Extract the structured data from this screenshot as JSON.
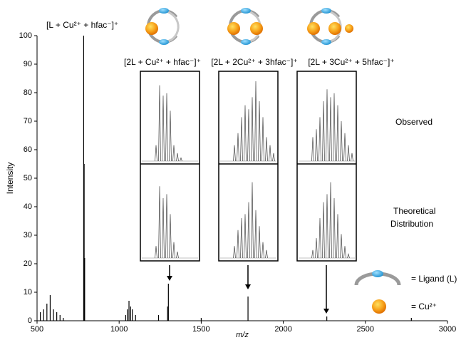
{
  "chart_data": {
    "type": "stem",
    "x_label": "m/z",
    "y_label": "Intensity",
    "xlim": [
      500,
      3000
    ],
    "xticks": [
      500,
      1000,
      1500,
      2000,
      2500,
      3000
    ],
    "ylim": [
      0,
      100
    ],
    "yticks": [
      0,
      10,
      20,
      30,
      40,
      50,
      60,
      70,
      80,
      90,
      100
    ],
    "color": "#000000",
    "x": [
      520,
      540,
      560,
      580,
      600,
      620,
      640,
      660,
      784,
      787,
      790,
      1040,
      1050,
      1060,
      1070,
      1080,
      1100,
      1240,
      1295,
      1300,
      1500,
      1785,
      2265,
      2780
    ],
    "values": [
      3,
      4,
      6,
      9,
      4,
      3,
      2,
      1,
      100,
      55,
      22,
      2,
      4,
      7,
      5,
      4,
      2,
      2,
      5,
      13,
      1,
      8.5,
      1.5,
      1
    ],
    "annotation": "[L + Cu²⁺ + hfac⁻]⁺",
    "observed_label": "Observed",
    "theoretical_label": [
      "Theoretical",
      "Distribution"
    ],
    "insets": [
      {
        "label": "[2L + Cu²⁺ + hfac⁻]⁺",
        "observed": [
          20,
          95,
          82,
          85,
          63,
          20,
          10,
          4
        ],
        "theoretical": [
          15,
          90,
          75,
          80,
          55,
          20,
          8
        ]
      },
      {
        "label": "[2L + 2Cu²⁺ + 3hfac⁻]⁺",
        "observed": [
          20,
          35,
          55,
          70,
          65,
          80,
          100,
          75,
          55,
          30,
          20,
          10
        ],
        "theoretical": [
          15,
          35,
          50,
          55,
          70,
          95,
          60,
          40,
          20,
          10
        ]
      },
      {
        "label": "[2L + 3Cu²⁺ + 5hfac⁻]⁺",
        "observed": [
          30,
          40,
          55,
          75,
          90,
          80,
          85,
          70,
          50,
          35,
          20,
          10
        ],
        "theoretical": [
          10,
          25,
          50,
          70,
          80,
          95,
          75,
          55,
          30,
          15,
          5
        ]
      }
    ],
    "legend": [
      "= Ligand (L)",
      "= Cu²⁺"
    ]
  }
}
